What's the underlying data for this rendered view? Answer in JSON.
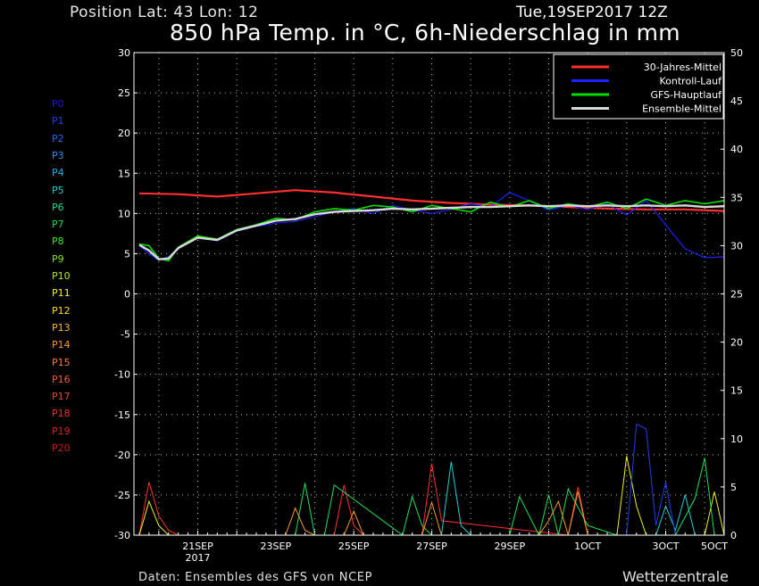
{
  "header": {
    "position_label": "Position   Lat: 43 Lon: 12",
    "datetime": "Tue,19SEP2017 12Z",
    "title": "850 hPa Temp. in °C, 6h-Niederschlag in mm"
  },
  "footer": {
    "source": "Daten: Ensembles des GFS von NCEP",
    "brand": "Wetterzentrale"
  },
  "members": [
    {
      "label": "P0",
      "color": "#1a1acc"
    },
    {
      "label": "P1",
      "color": "#1f3fe6"
    },
    {
      "label": "P2",
      "color": "#2a66ee"
    },
    {
      "label": "P3",
      "color": "#2e8cf0"
    },
    {
      "label": "P4",
      "color": "#22b0ee"
    },
    {
      "label": "P5",
      "color": "#1fd0d8"
    },
    {
      "label": "P6",
      "color": "#18dc96"
    },
    {
      "label": "P7",
      "color": "#1ee05a"
    },
    {
      "label": "P8",
      "color": "#3ee030"
    },
    {
      "label": "P9",
      "color": "#7fe622"
    },
    {
      "label": "P10",
      "color": "#b8ee1c"
    },
    {
      "label": "P11",
      "color": "#f2f21a"
    },
    {
      "label": "P12",
      "color": "#f8d820"
    },
    {
      "label": "P13",
      "color": "#f8b828"
    },
    {
      "label": "P14",
      "color": "#f89a2a"
    },
    {
      "label": "P15",
      "color": "#f47a2c"
    },
    {
      "label": "P16",
      "color": "#ee5e2e"
    },
    {
      "label": "P17",
      "color": "#e84830"
    },
    {
      "label": "P18",
      "color": "#e03430"
    },
    {
      "label": "P19",
      "color": "#d42428"
    },
    {
      "label": "P20",
      "color": "#c41c22"
    }
  ],
  "chart_data": {
    "type": "line",
    "left_axis": {
      "ylim": [
        -30,
        30
      ],
      "ticks": [
        "30",
        "25",
        "20",
        "15",
        "10",
        "5",
        "0",
        "-5",
        "-10",
        "-15",
        "-20",
        "-25",
        "-30"
      ]
    },
    "right_axis": {
      "ylim": [
        0,
        50
      ],
      "ticks": [
        "50",
        "45",
        "40",
        "35",
        "30",
        "25",
        "20",
        "15",
        "10",
        "5",
        "0"
      ]
    },
    "x_axis": {
      "range_hours": [
        0,
        360
      ],
      "tick_labels": [
        {
          "label": "21SEP",
          "sub": "2017",
          "hour": 36
        },
        {
          "label": "23SEP",
          "sub": "",
          "hour": 84
        },
        {
          "label": "25SEP",
          "sub": "",
          "hour": 132
        },
        {
          "label": "27SEP",
          "sub": "",
          "hour": 180
        },
        {
          "label": "29SEP",
          "sub": "",
          "hour": 228
        },
        {
          "label": "1OCT",
          "sub": "",
          "hour": 276
        },
        {
          "label": "3OCT",
          "sub": "",
          "hour": 324
        },
        {
          "label": "5OCT",
          "sub": "",
          "hour": 372
        }
      ]
    },
    "grid": true,
    "legend": {
      "placement": "top-right"
    },
    "series": [
      {
        "name": "30-Jahres-Mittel",
        "color": "#ff3030",
        "width": 2.2,
        "x": [
          0,
          24,
          48,
          72,
          96,
          120,
          144,
          168,
          192,
          216,
          240,
          264,
          288,
          312,
          336,
          360
        ],
        "y": [
          12.5,
          12.4,
          12.1,
          12.5,
          12.9,
          12.6,
          12.1,
          11.6,
          11.3,
          11.1,
          11.0,
          10.8,
          10.6,
          10.5,
          10.5,
          10.3
        ]
      },
      {
        "name": "Kontroll-Lauf",
        "color": "#2020ff",
        "width": 1.2,
        "x": [
          0,
          6,
          12,
          18,
          24,
          36,
          48,
          60,
          72,
          84,
          96,
          108,
          120,
          132,
          144,
          156,
          168,
          180,
          192,
          204,
          216,
          228,
          240,
          252,
          264,
          276,
          288,
          300,
          312,
          324,
          336,
          348,
          360
        ],
        "y": [
          6.0,
          5.0,
          4.2,
          4.6,
          5.6,
          7.1,
          6.6,
          7.8,
          8.4,
          8.8,
          9.0,
          9.6,
          10.2,
          10.6,
          10.0,
          11.0,
          10.4,
          10.0,
          10.5,
          11.2,
          10.8,
          12.6,
          11.6,
          10.4,
          11.0,
          10.5,
          11.2,
          9.8,
          11.6,
          8.6,
          5.6,
          4.5,
          4.6
        ]
      },
      {
        "name": "GFS-Hauptlauf",
        "color": "#00e000",
        "width": 1.6,
        "x": [
          0,
          6,
          12,
          18,
          24,
          36,
          48,
          60,
          72,
          84,
          96,
          108,
          120,
          132,
          144,
          156,
          168,
          180,
          192,
          204,
          216,
          228,
          240,
          252,
          264,
          276,
          288,
          300,
          312,
          324,
          336,
          348,
          360
        ],
        "y": [
          6.2,
          6.0,
          4.4,
          4.1,
          5.8,
          7.2,
          6.8,
          8.0,
          8.6,
          9.4,
          9.2,
          10.2,
          10.6,
          10.4,
          11.0,
          10.8,
          10.2,
          11.0,
          10.6,
          10.2,
          11.4,
          10.8,
          11.6,
          10.6,
          11.2,
          10.8,
          11.4,
          10.6,
          11.8,
          11.0,
          11.6,
          11.2,
          11.6
        ]
      },
      {
        "name": "Ensemble-Mittel",
        "color": "#d8d8d8",
        "width": 2.4,
        "x": [
          0,
          6,
          12,
          18,
          24,
          36,
          48,
          60,
          72,
          84,
          96,
          108,
          120,
          132,
          144,
          156,
          168,
          180,
          192,
          204,
          216,
          228,
          240,
          252,
          264,
          276,
          288,
          300,
          312,
          324,
          336,
          348,
          360
        ],
        "y": [
          6.1,
          5.4,
          4.3,
          4.4,
          5.7,
          7.0,
          6.7,
          7.9,
          8.5,
          9.1,
          9.3,
          9.9,
          10.2,
          10.3,
          10.4,
          10.6,
          10.5,
          10.6,
          10.7,
          10.8,
          10.8,
          10.9,
          11.0,
          10.9,
          11.0,
          10.9,
          11.0,
          10.9,
          11.0,
          10.9,
          11.0,
          10.8,
          10.9
        ]
      }
    ],
    "precipitation_axis": "right",
    "precipitation": [
      {
        "color": "#ff3030",
        "x": [
          0,
          6,
          12,
          18,
          24,
          120,
          126,
          132,
          138,
          174,
          180,
          186,
          264,
          270,
          276
        ],
        "y": [
          0,
          5.5,
          2,
          0.5,
          0,
          0,
          5.2,
          1,
          0,
          0,
          7.4,
          1.5,
          0,
          5,
          0
        ]
      },
      {
        "color": "#1fd0d8",
        "x": [
          186,
          192,
          198,
          204,
          210,
          318,
          324,
          330,
          336,
          342
        ],
        "y": [
          0,
          7.6,
          1,
          0,
          0,
          0,
          3,
          0.5,
          4.2,
          0
        ]
      },
      {
        "color": "#f2f21a",
        "x": [
          0,
          6,
          12,
          18,
          24,
          294,
          300,
          306,
          312,
          348,
          354,
          360
        ],
        "y": [
          0,
          3.5,
          1,
          0,
          0,
          0,
          8.2,
          3,
          0,
          0,
          4.5,
          0
        ]
      },
      {
        "color": "#1f3fe6",
        "x": [
          300,
          306,
          312,
          318,
          324,
          330
        ],
        "y": [
          0,
          11.5,
          11,
          1,
          5.5,
          0
        ]
      },
      {
        "color": "#1ee05a",
        "x": [
          96,
          102,
          108,
          114,
          120,
          162,
          168,
          174,
          180,
          228,
          234,
          246,
          252,
          258,
          264,
          276,
          294,
          300,
          330,
          342,
          348,
          354
        ],
        "y": [
          0,
          5.4,
          0,
          0,
          5.2,
          0,
          4,
          1,
          0,
          0,
          4,
          0,
          4.2,
          0,
          4.8,
          1,
          0,
          0,
          0,
          3.8,
          8,
          0
        ]
      },
      {
        "color": "#f89a2a",
        "x": [
          90,
          96,
          102,
          108,
          126,
          132,
          138,
          174,
          180,
          186,
          246,
          252,
          258,
          264,
          270,
          276
        ],
        "y": [
          0,
          2.8,
          0.5,
          0,
          0,
          2.5,
          0,
          0,
          3.4,
          0,
          0,
          1.5,
          3.5,
          0,
          4.5,
          0
        ]
      }
    ]
  }
}
